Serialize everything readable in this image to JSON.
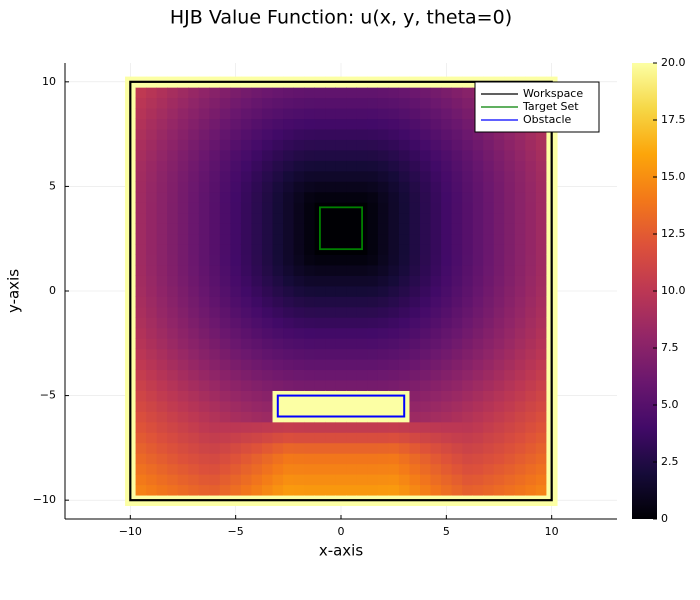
{
  "chart_data": {
    "type": "heatmap",
    "title": "HJB Value Function: u(x, y, theta=0)",
    "xlabel": "x-axis",
    "ylabel": "y-axis",
    "xlim": [
      -13.1,
      13.1
    ],
    "ylim": [
      -10.9,
      10.9
    ],
    "x_ticks": [
      -10,
      -5,
      0,
      5,
      10
    ],
    "y_ticks": [
      -10,
      -5,
      0,
      5,
      10
    ],
    "x_tick_labels": [
      "−10",
      "−5",
      "0",
      "5",
      "10"
    ],
    "y_tick_labels": [
      "−10",
      "−5",
      "0",
      "5",
      "10"
    ],
    "grid": true,
    "colorbar": {
      "colormap": "inferno",
      "range": [
        0,
        20
      ],
      "ticks": [
        0,
        2.5,
        5,
        7.5,
        10,
        12.5,
        15,
        17.5,
        20
      ],
      "tick_labels": [
        "0",
        "2.5",
        "5.0",
        "7.5",
        "10.0",
        "12.5",
        "15.0",
        "17.5",
        "20.0"
      ]
    },
    "heatmap": {
      "x_range": [
        -10,
        10
      ],
      "y_range": [
        -10,
        10
      ],
      "grid_size": 41,
      "target_center": [
        0,
        3
      ],
      "target_half_width": 1,
      "obstacle_value": 20,
      "boundary_value": 20,
      "approx_values": {
        "target": 0,
        "left_edge_mid": 10,
        "right_edge_mid": 10,
        "top_left_corner": 10,
        "below_obstacle": 15,
        "bottom_edge": 16
      }
    },
    "shapes": [
      {
        "name": "Workspace",
        "color": "#000000",
        "xmin": -10,
        "xmax": 10,
        "ymin": -10,
        "ymax": 10
      },
      {
        "name": "Target Set",
        "color": "#008000",
        "xmin": -1,
        "xmax": 1,
        "ymin": 2,
        "ymax": 4
      },
      {
        "name": "Obstacle",
        "color": "#0000ff",
        "xmin": -3,
        "xmax": 3,
        "ymin": -6,
        "ymax": -5
      }
    ],
    "legend": {
      "position": "top-right",
      "entries": [
        "Workspace",
        "Target Set",
        "Obstacle"
      ]
    }
  }
}
